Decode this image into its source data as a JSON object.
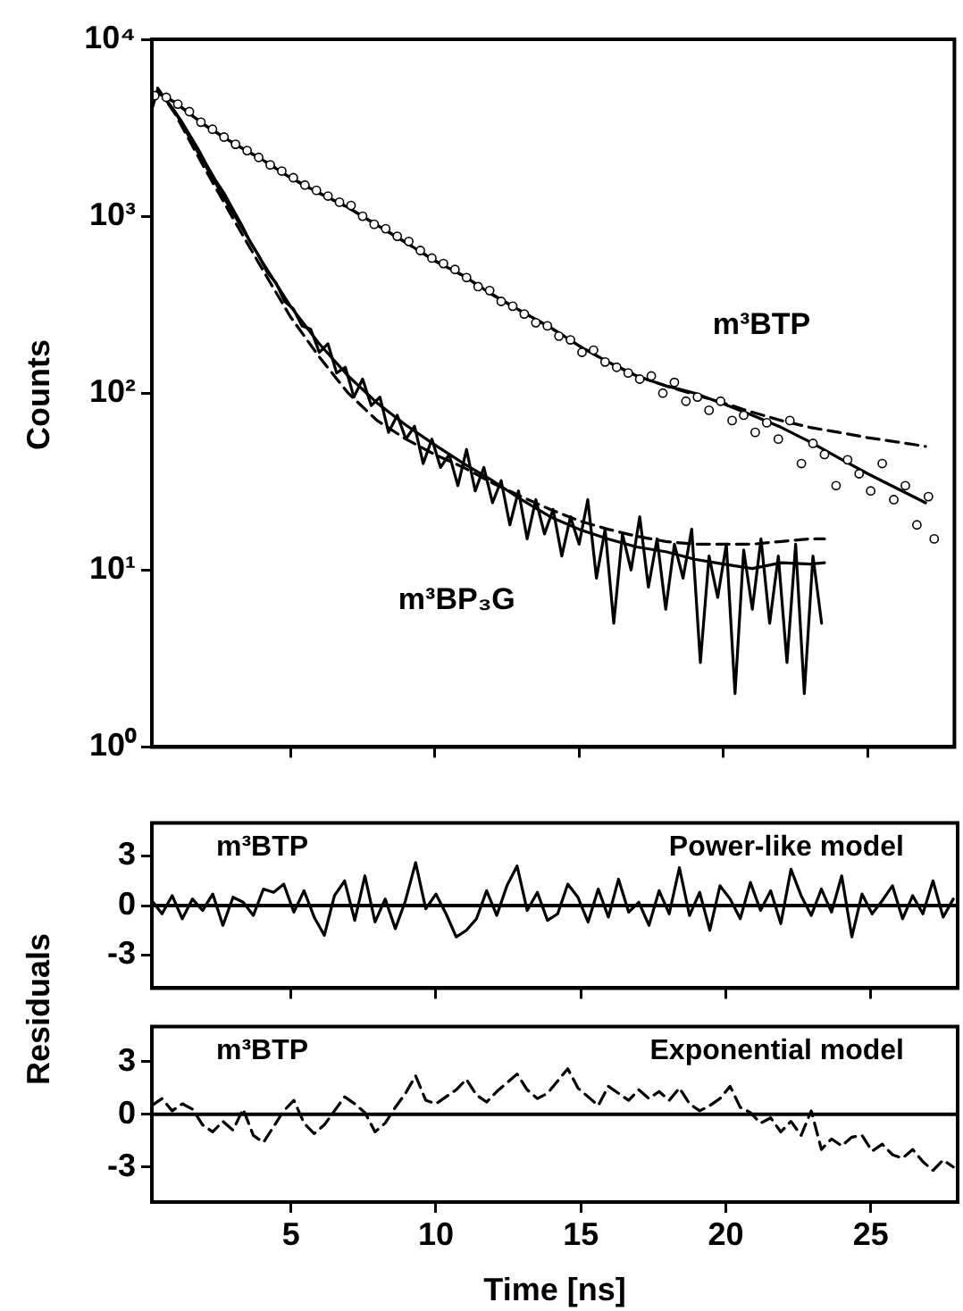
{
  "chart_data": [
    {
      "type": "line",
      "ylabel": "Counts",
      "log": "y",
      "xlim": [
        0.2,
        28
      ],
      "xticks": [
        5,
        10,
        15,
        20,
        25
      ],
      "ylim": [
        1,
        10000
      ],
      "yticks": [
        {
          "value": 1,
          "label": "10⁰"
        },
        {
          "value": 10,
          "label": "10¹"
        },
        {
          "value": 100,
          "label": "10²"
        },
        {
          "value": 1000,
          "label": "10³"
        },
        {
          "value": 10000,
          "label": "10⁴"
        }
      ],
      "tick_labels": "y",
      "series": [
        {
          "type": "scatter",
          "name": "m³BTP",
          "marker": "circle",
          "color": "#000000",
          "x": [
            0.3,
            0.7,
            1.1,
            1.5,
            1.9,
            2.3,
            2.7,
            3.1,
            3.5,
            3.9,
            4.3,
            4.7,
            5.1,
            5.5,
            5.9,
            6.3,
            6.7,
            7.1,
            7.5,
            7.9,
            8.3,
            8.7,
            9.1,
            9.5,
            9.9,
            10.3,
            10.7,
            11.1,
            11.5,
            11.9,
            12.3,
            12.7,
            13.1,
            13.5,
            13.9,
            14.3,
            14.7,
            15.1,
            15.5,
            15.9,
            16.3,
            16.7,
            17.1,
            17.5,
            17.9,
            18.3,
            18.7,
            19.1,
            19.5,
            19.9,
            20.3,
            20.7,
            21.1,
            21.5,
            21.9,
            22.3,
            22.7,
            23.1,
            23.5,
            23.9,
            24.3,
            24.7,
            25.1,
            25.5,
            25.9,
            26.3,
            26.7,
            27.1,
            27.3
          ],
          "values": [
            4800,
            4700,
            4300,
            3900,
            3400,
            3100,
            2800,
            2550,
            2350,
            2150,
            1950,
            1800,
            1650,
            1500,
            1400,
            1300,
            1200,
            1150,
            1000,
            900,
            850,
            770,
            720,
            640,
            580,
            540,
            500,
            450,
            400,
            380,
            330,
            310,
            280,
            250,
            240,
            210,
            200,
            170,
            175,
            150,
            140,
            130,
            120,
            125,
            100,
            115,
            90,
            95,
            80,
            90,
            70,
            75,
            60,
            68,
            55,
            70,
            40,
            52,
            45,
            30,
            42,
            35,
            28,
            40,
            25,
            30,
            18,
            26,
            15
          ]
        },
        {
          "line_style": "solid",
          "color": "#000000",
          "x": [
            0.2,
            0.4,
            1,
            2,
            3,
            4,
            5,
            6,
            7,
            8,
            9,
            10,
            11,
            12,
            13,
            14,
            15,
            16,
            17,
            18,
            19,
            20,
            21,
            22,
            23,
            24,
            25,
            26,
            27
          ],
          "values": [
            4500,
            5000,
            4400,
            3300,
            2600,
            2100,
            1650,
            1350,
            1120,
            890,
            710,
            560,
            460,
            360,
            290,
            235,
            185,
            150,
            125,
            110,
            100,
            87,
            75,
            64,
            53,
            43,
            35,
            29,
            24
          ]
        },
        {
          "line_style": "dashed",
          "color": "#000000",
          "x": [
            0.2,
            0.4,
            1,
            2,
            3,
            4,
            5,
            6,
            7,
            8,
            9,
            10,
            11,
            12,
            13,
            14,
            15,
            16,
            17,
            18,
            19,
            20,
            21,
            22,
            23,
            24,
            25,
            26,
            27
          ],
          "values": [
            4500,
            5000,
            4400,
            3300,
            2600,
            2100,
            1650,
            1350,
            1120,
            890,
            710,
            560,
            460,
            360,
            290,
            235,
            185,
            150,
            125,
            110,
            98,
            88,
            78,
            70,
            64,
            60,
            56,
            53,
            50
          ]
        },
        {
          "name": "m³BP₃G",
          "line_style": "solid",
          "color": "#000000",
          "x": [
            0.3,
            0.6,
            0.9,
            1.2,
            1.5,
            1.8,
            2.1,
            2.4,
            2.7,
            3.0,
            3.3,
            3.6,
            3.9,
            4.2,
            4.5,
            4.8,
            5.1,
            5.4,
            5.7,
            6.0,
            6.3,
            6.6,
            6.9,
            7.2,
            7.5,
            7.8,
            8.1,
            8.4,
            8.7,
            9.0,
            9.3,
            9.6,
            9.9,
            10.2,
            10.5,
            10.8,
            11.1,
            11.4,
            11.7,
            12.0,
            12.3,
            12.6,
            12.9,
            13.2,
            13.5,
            13.8,
            14.1,
            14.4,
            14.7,
            15.0,
            15.3,
            15.6,
            15.9,
            16.2,
            16.5,
            16.8,
            17.1,
            17.4,
            17.7,
            18.0,
            18.3,
            18.6,
            18.9,
            19.2,
            19.5,
            19.8,
            20.1,
            20.4,
            20.7,
            21.0,
            21.3,
            21.6,
            21.9,
            22.2,
            22.5,
            22.8,
            23.1,
            23.4
          ],
          "values": [
            5000,
            4800,
            4100,
            3500,
            2900,
            2400,
            1950,
            1600,
            1350,
            1100,
            900,
            720,
            600,
            480,
            420,
            330,
            300,
            240,
            230,
            170,
            190,
            130,
            140,
            95,
            120,
            85,
            95,
            60,
            75,
            55,
            65,
            40,
            55,
            38,
            45,
            30,
            48,
            28,
            38,
            24,
            32,
            18,
            28,
            15,
            25,
            16,
            22,
            12,
            20,
            14,
            25,
            9,
            17,
            5,
            16,
            10,
            20,
            8,
            15,
            6,
            14,
            9,
            17,
            3,
            12,
            7,
            14,
            2,
            13,
            6,
            15,
            5,
            12,
            3,
            14,
            2,
            12,
            5
          ]
        },
        {
          "line_style": "solid",
          "color": "#000000",
          "x": [
            0.2,
            0.4,
            1,
            2,
            3,
            4,
            5,
            6,
            7,
            8,
            9,
            10,
            11,
            12,
            13,
            14,
            15,
            16,
            17,
            18,
            19,
            20,
            21,
            22,
            23,
            23.5
          ],
          "values": [
            4000,
            5200,
            3900,
            2000,
            1050,
            560,
            310,
            190,
            125,
            88,
            66,
            51,
            40,
            32,
            25,
            20,
            17,
            15,
            13.5,
            12.7,
            11.5,
            10.8,
            10.2,
            11,
            10.8,
            11
          ]
        },
        {
          "line_style": "dashed",
          "color": "#000000",
          "x": [
            0.4,
            1,
            2,
            3,
            4,
            5,
            6,
            7,
            8,
            9,
            10,
            11,
            12,
            13,
            14,
            15,
            16,
            17,
            18,
            19,
            20,
            21,
            22,
            23,
            23.5
          ],
          "values": [
            5300,
            3800,
            1900,
            980,
            510,
            270,
            160,
            100,
            70,
            55,
            45,
            38,
            31,
            26,
            22,
            19,
            17,
            15.5,
            14.5,
            14,
            14,
            14,
            14.5,
            15,
            15
          ]
        }
      ]
    },
    {
      "type": "line",
      "ylabel": "Residuals",
      "xlim": [
        0.2,
        28
      ],
      "xticks": [
        5,
        10,
        15,
        20,
        25
      ],
      "ylim": [
        -5,
        5
      ],
      "yticks": [
        3,
        0,
        -3
      ],
      "tick_labels": "y",
      "annotations": [
        "m³BTP",
        "Power-like model"
      ],
      "ref_lines": [
        {
          "axis": "y",
          "value": 0,
          "color": "#000000"
        }
      ],
      "x": [
        0.2,
        0.55,
        0.9,
        1.25,
        1.6,
        1.95,
        2.3,
        2.65,
        3.0,
        3.35,
        3.7,
        4.05,
        4.4,
        4.75,
        5.1,
        5.45,
        5.8,
        6.15,
        6.5,
        6.85,
        7.2,
        7.55,
        7.9,
        8.25,
        8.6,
        8.95,
        9.3,
        9.65,
        10.0,
        10.35,
        10.7,
        11.05,
        11.4,
        11.75,
        12.1,
        12.45,
        12.8,
        13.15,
        13.5,
        13.85,
        14.2,
        14.55,
        14.9,
        15.25,
        15.6,
        15.95,
        16.3,
        16.65,
        17.0,
        17.35,
        17.7,
        18.05,
        18.4,
        18.75,
        19.1,
        19.45,
        19.8,
        20.15,
        20.5,
        20.85,
        21.2,
        21.55,
        21.9,
        22.25,
        22.6,
        22.95,
        23.3,
        23.65,
        24.0,
        24.35,
        24.7,
        25.05,
        25.4,
        25.75,
        26.1,
        26.45,
        26.8,
        27.15,
        27.5,
        27.85
      ],
      "series": [
        {
          "line_style": "solid",
          "color": "#000000",
          "values": [
            0.3,
            -0.5,
            0.6,
            -0.8,
            0.4,
            -0.3,
            0.7,
            -1.2,
            0.5,
            0.2,
            -0.6,
            1.0,
            0.8,
            1.3,
            -0.4,
            0.9,
            -0.7,
            -1.8,
            0.6,
            1.5,
            -0.9,
            1.8,
            -1.0,
            0.4,
            -1.4,
            0.3,
            2.6,
            -0.2,
            0.7,
            -0.5,
            -1.9,
            -1.5,
            -0.8,
            0.9,
            -0.6,
            1.2,
            2.4,
            -0.3,
            0.8,
            -0.9,
            -0.5,
            1.3,
            0.5,
            -1.0,
            1.0,
            -0.7,
            1.6,
            -0.4,
            0.2,
            -1.2,
            0.9,
            -0.5,
            2.3,
            -0.6,
            0.8,
            -1.5,
            1.2,
            0.4,
            -0.8,
            1.4,
            -0.3,
            0.9,
            -1.1,
            2.2,
            0.6,
            -0.6,
            1.0,
            -0.4,
            1.8,
            -1.9,
            0.7,
            -0.5,
            0.3,
            1.2,
            -0.8,
            0.6,
            -0.5,
            1.5,
            -0.7,
            0.4
          ]
        }
      ]
    },
    {
      "type": "line",
      "xlabel": "Time [ns]",
      "xlim": [
        0.2,
        28
      ],
      "xticks": [
        5,
        10,
        15,
        20,
        25
      ],
      "ylim": [
        -5,
        5
      ],
      "yticks": [
        3,
        0,
        -3
      ],
      "annotations": [
        "m³BTP",
        "Exponential model"
      ],
      "ref_lines": [
        {
          "axis": "y",
          "value": 0,
          "color": "#000000"
        }
      ],
      "x": [
        0.2,
        0.55,
        0.9,
        1.25,
        1.6,
        1.95,
        2.3,
        2.65,
        3.0,
        3.35,
        3.7,
        4.05,
        4.4,
        4.75,
        5.1,
        5.45,
        5.8,
        6.15,
        6.5,
        6.85,
        7.2,
        7.55,
        7.9,
        8.25,
        8.6,
        8.95,
        9.3,
        9.65,
        10.0,
        10.35,
        10.7,
        11.05,
        11.4,
        11.75,
        12.1,
        12.45,
        12.8,
        13.15,
        13.5,
        13.85,
        14.2,
        14.55,
        14.9,
        15.25,
        15.6,
        15.95,
        16.3,
        16.65,
        17.0,
        17.35,
        17.7,
        18.05,
        18.4,
        18.75,
        19.1,
        19.45,
        19.8,
        20.15,
        20.5,
        20.85,
        21.2,
        21.55,
        21.9,
        22.25,
        22.6,
        22.95,
        23.3,
        23.65,
        24.0,
        24.35,
        24.7,
        25.05,
        25.4,
        25.75,
        26.1,
        26.45,
        26.8,
        27.15,
        27.5,
        27.85
      ],
      "series": [
        {
          "line_style": "dashed",
          "color": "#000000",
          "values": [
            0.5,
            0.9,
            0.2,
            0.6,
            0.3,
            -0.6,
            -1.0,
            -0.4,
            -0.9,
            0.3,
            -1.2,
            -1.6,
            -0.7,
            0.2,
            0.8,
            -0.5,
            -1.1,
            -0.6,
            0.2,
            1.0,
            0.6,
            0.1,
            -1.0,
            -0.5,
            0.4,
            1.2,
            2.2,
            0.8,
            0.6,
            1.0,
            1.4,
            2.0,
            1.1,
            0.7,
            1.3,
            1.8,
            2.3,
            1.4,
            0.9,
            1.2,
            1.9,
            2.6,
            1.5,
            1.0,
            0.5,
            1.6,
            1.2,
            0.8,
            1.4,
            0.9,
            1.3,
            0.8,
            1.5,
            0.6,
            0.2,
            0.5,
            0.9,
            1.6,
            0.4,
            0.1,
            -0.5,
            -0.2,
            -1.0,
            -0.4,
            -1.2,
            0.2,
            -2.0,
            -1.4,
            -1.8,
            -1.3,
            -1.2,
            -2.1,
            -1.7,
            -2.3,
            -2.5,
            -2.0,
            -2.7,
            -3.2,
            -2.6,
            -3.0
          ]
        }
      ]
    }
  ]
}
